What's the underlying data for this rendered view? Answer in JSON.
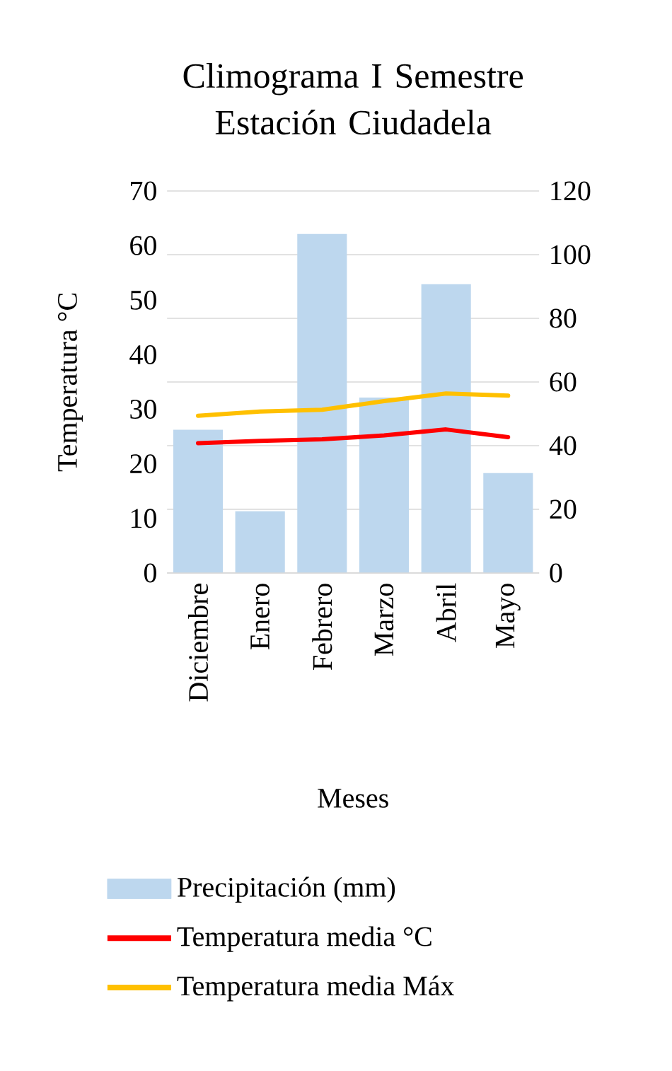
{
  "chart_data": {
    "type": "bar",
    "title": "Climograma I Semestre Estación Ciudadela",
    "xlabel": "Meses",
    "ylabel": "Temperatura °C",
    "categories": [
      "Diciembre",
      "Enero",
      "Febrero",
      "Marzo",
      "Abril",
      "Mayo"
    ],
    "series": [
      {
        "name": "Precipitación (mm)",
        "axis": "y2",
        "color": "#bdd7ee",
        "values": [
          45,
          19.4,
          106.5,
          55.1,
          90.7,
          31.4
        ]
      },
      {
        "name": "Temperatura media °C",
        "type": "line",
        "color": "#ff0000",
        "values": [
          23.8,
          24.2,
          24.5,
          25.2,
          26.3,
          24.9
        ]
      },
      {
        "name": "Temperatura media Máx",
        "type": "line",
        "color": "#ffc000",
        "values": [
          28.8,
          29.6,
          29.9,
          31.5,
          32.9,
          32.5
        ]
      }
    ],
    "ylim": [
      0,
      70
    ],
    "yticks": [
      0,
      10,
      20,
      30,
      40,
      50,
      60,
      70
    ],
    "y2lim": [
      0,
      120
    ],
    "y2ticks": [
      0,
      20,
      40,
      60,
      80,
      100,
      120
    ],
    "grid": "y",
    "legend": "bottom"
  }
}
